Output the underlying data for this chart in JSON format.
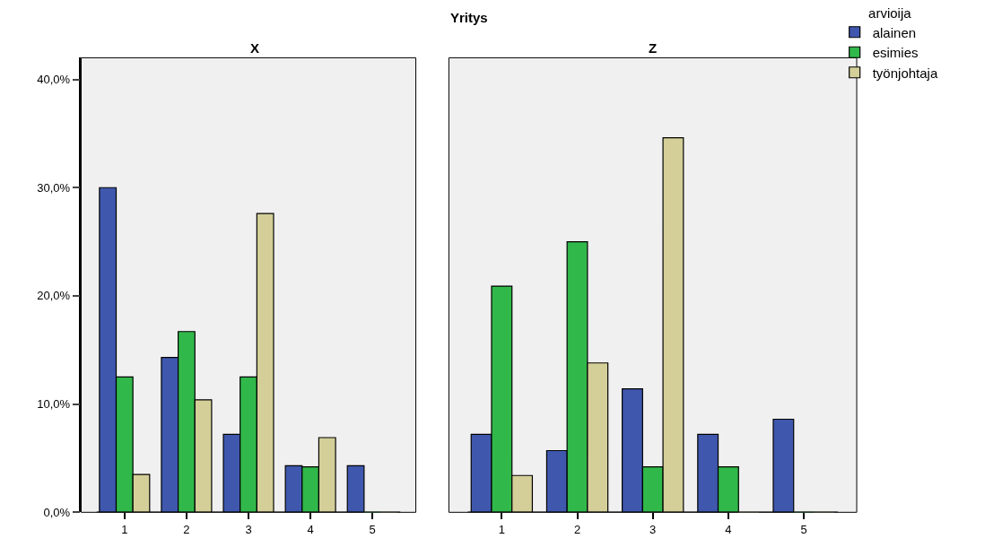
{
  "chart_data": [
    {
      "type": "bar",
      "title": "X",
      "annotations": [
        "Yritys"
      ],
      "legend_title": "arvioija",
      "legend": "top right",
      "categories": [
        "1",
        "2",
        "3",
        "4",
        "5"
      ],
      "series": [
        {
          "name": "alainen",
          "color": "#3f58ad",
          "values": [
            30.0,
            14.3,
            7.2,
            4.3,
            4.3
          ]
        },
        {
          "name": "esimies",
          "color": "#31b84a",
          "values": [
            12.5,
            16.7,
            12.5,
            4.2,
            0
          ]
        },
        {
          "name": "työnjohtaja",
          "color": "#d4cf98",
          "values": [
            3.5,
            10.4,
            27.6,
            6.9,
            0
          ]
        }
      ],
      "ylim": [
        0,
        42
      ],
      "yticks": [
        {
          "value": 0,
          "label": "0,0%"
        },
        {
          "value": 10,
          "label": "10,0%"
        },
        {
          "value": 20,
          "label": "20,0%"
        },
        {
          "value": 30,
          "label": "30,0%"
        },
        {
          "value": 40,
          "label": "40,0%"
        }
      ]
    },
    {
      "type": "bar",
      "title": "Z",
      "legend": "top right",
      "tick_labels": "x",
      "categories": [
        "1",
        "2",
        "3",
        "4",
        "5"
      ],
      "series": [
        {
          "name": "alainen",
          "color": "#3f58ad",
          "values": [
            7.2,
            5.7,
            11.4,
            7.2,
            8.6
          ]
        },
        {
          "name": "esimies",
          "color": "#31b84a",
          "values": [
            20.9,
            25.0,
            4.2,
            4.2,
            0
          ]
        },
        {
          "name": "työnjohtaja",
          "color": "#d4cf98",
          "values": [
            3.4,
            13.8,
            34.6,
            0,
            0
          ]
        }
      ],
      "ylim": [
        0,
        42
      ]
    }
  ]
}
